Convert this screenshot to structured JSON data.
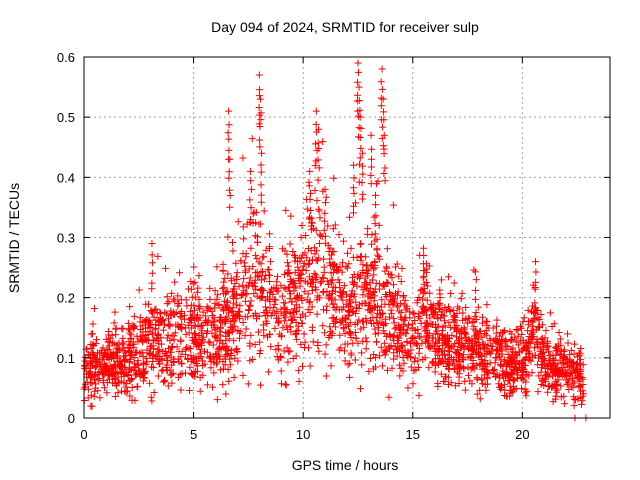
{
  "chart_data": {
    "type": "scatter",
    "title": "Day 094 of 2024, SRMTID for receiver sulp",
    "xlabel": "GPS time / hours",
    "ylabel": "SRMTID / TECUs",
    "xlim": [
      0,
      24
    ],
    "ylim": [
      0,
      0.6
    ],
    "xticks": [
      "0",
      "5",
      "10",
      "15",
      "20"
    ],
    "xtick_values": [
      0,
      5,
      10,
      15,
      20
    ],
    "yticks": [
      "0",
      "0.1",
      "0.2",
      "0.3",
      "0.4",
      "0.5",
      "0.6"
    ],
    "ytick_values": [
      0,
      0.1,
      0.2,
      0.3,
      0.4,
      0.5,
      0.6
    ],
    "grid": true,
    "marker": "+",
    "color": "#ff0000",
    "series": [
      {
        "name": "SRMTID",
        "base_profile": {
          "x": [
            0,
            1,
            2,
            3,
            4,
            5,
            6,
            6.6,
            7.5,
            8,
            9,
            10,
            10.6,
            11,
            12,
            12.5,
            13.5,
            14,
            15,
            15.5,
            16,
            17,
            18,
            19,
            20,
            20.6,
            21,
            22,
            22.8
          ],
          "y": [
            0.08,
            0.09,
            0.1,
            0.12,
            0.13,
            0.14,
            0.13,
            0.16,
            0.22,
            0.22,
            0.17,
            0.23,
            0.26,
            0.22,
            0.17,
            0.21,
            0.19,
            0.17,
            0.13,
            0.17,
            0.14,
            0.12,
            0.11,
            0.1,
            0.09,
            0.14,
            0.09,
            0.08,
            0.06
          ]
        },
        "peaks": [
          {
            "x": 3.1,
            "y": 0.29
          },
          {
            "x": 6.6,
            "y": 0.51
          },
          {
            "x": 6.65,
            "y": 0.43
          },
          {
            "x": 7.6,
            "y": 0.41
          },
          {
            "x": 8.0,
            "y": 0.57
          },
          {
            "x": 8.05,
            "y": 0.53
          },
          {
            "x": 8.1,
            "y": 0.44
          },
          {
            "x": 10.3,
            "y": 0.41
          },
          {
            "x": 10.6,
            "y": 0.51
          },
          {
            "x": 10.7,
            "y": 0.48
          },
          {
            "x": 11.0,
            "y": 0.38
          },
          {
            "x": 12.3,
            "y": 0.42
          },
          {
            "x": 12.5,
            "y": 0.59
          },
          {
            "x": 12.55,
            "y": 0.55
          },
          {
            "x": 12.6,
            "y": 0.5
          },
          {
            "x": 12.7,
            "y": 0.44
          },
          {
            "x": 13.1,
            "y": 0.47
          },
          {
            "x": 13.6,
            "y": 0.58
          },
          {
            "x": 13.65,
            "y": 0.53
          },
          {
            "x": 13.7,
            "y": 0.47
          },
          {
            "x": 13.3,
            "y": 0.37
          },
          {
            "x": 15.5,
            "y": 0.27
          },
          {
            "x": 17.9,
            "y": 0.23
          },
          {
            "x": 20.6,
            "y": 0.26
          },
          {
            "x": 22.4,
            "y": 0.0
          },
          {
            "x": 22.9,
            "y": 0.0
          }
        ],
        "data_end_x": 22.8
      }
    ]
  }
}
